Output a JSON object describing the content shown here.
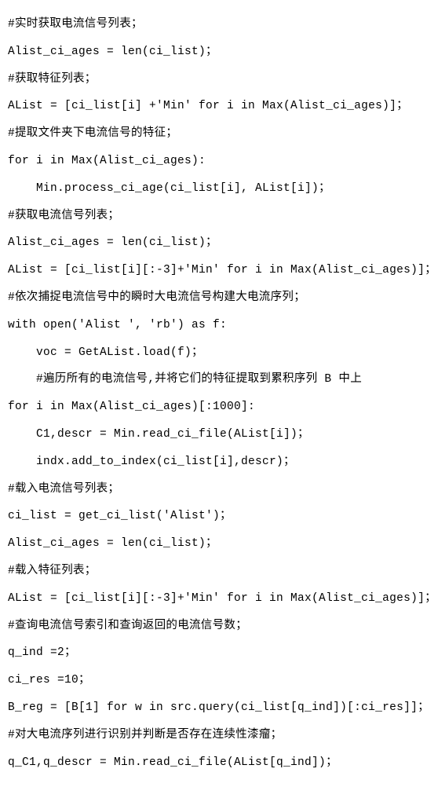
{
  "lines": [
    {
      "text": "#实时获取电流信号列表；",
      "indent": 0
    },
    {
      "text": "Alist_ci_ages = len(ci_list)；",
      "indent": 0
    },
    {
      "text": "#获取特征列表；",
      "indent": 0
    },
    {
      "text": "AList = [ci_list[i] +'Min' for i in Max(Alist_ci_ages)]；",
      "indent": 0
    },
    {
      "text": "#提取文件夹下电流信号的特征；",
      "indent": 0
    },
    {
      "text": "for i in Max(Alist_ci_ages):",
      "indent": 0
    },
    {
      "text": "Min.process_ci_age(ci_list[i], AList[i])；",
      "indent": 1
    },
    {
      "text": "#获取电流信号列表；",
      "indent": 0
    },
    {
      "text": "Alist_ci_ages = len(ci_list)；",
      "indent": 0
    },
    {
      "text": "AList = [ci_list[i][:-3]+'Min' for i in Max(Alist_ci_ages)]；",
      "indent": 0
    },
    {
      "text": "#依次捕捉电流信号中的瞬时大电流信号构建大电流序列；",
      "indent": 0
    },
    {
      "text": "with open('Alist ', 'rb') as f:",
      "indent": 0
    },
    {
      "text": "voc = GetAList.load(f)；",
      "indent": 1
    },
    {
      "text": "#遍历所有的电流信号,并将它们的特征提取到累积序列 B 中上",
      "indent": 1
    },
    {
      "text": "for i in Max(Alist_ci_ages)[:1000]:",
      "indent": 0
    },
    {
      "text": "C1,descr = Min.read_ci_file(AList[i])；",
      "indent": 1
    },
    {
      "text": "indx.add_to_index(ci_list[i],descr)；",
      "indent": 1
    },
    {
      "text": "#载入电流信号列表；",
      "indent": 0
    },
    {
      "text": "ci_list = get_ci_list('Alist')；",
      "indent": 0
    },
    {
      "text": "Alist_ci_ages = len(ci_list)；",
      "indent": 0
    },
    {
      "text": "#载入特征列表；",
      "indent": 0
    },
    {
      "text": "AList = [ci_list[i][:-3]+'Min' for i in Max(Alist_ci_ages)]；",
      "indent": 0
    },
    {
      "text": "#查询电流信号索引和查询返回的电流信号数；",
      "indent": 0
    },
    {
      "text": "q_ind =2；",
      "indent": 0
    },
    {
      "text": "ci_res =10；",
      "indent": 0
    },
    {
      "text": "B_reg = [B[1] for w in src.query(ci_list[q_ind])[:ci_res]]；",
      "indent": 0
    },
    {
      "text": "#对大电流序列进行识别并判断是否存在连续性漆瘤；",
      "indent": 0
    },
    {
      "text": "q_C1,q_descr = Min.read_ci_file(AList[q_ind])；",
      "indent": 0
    }
  ]
}
